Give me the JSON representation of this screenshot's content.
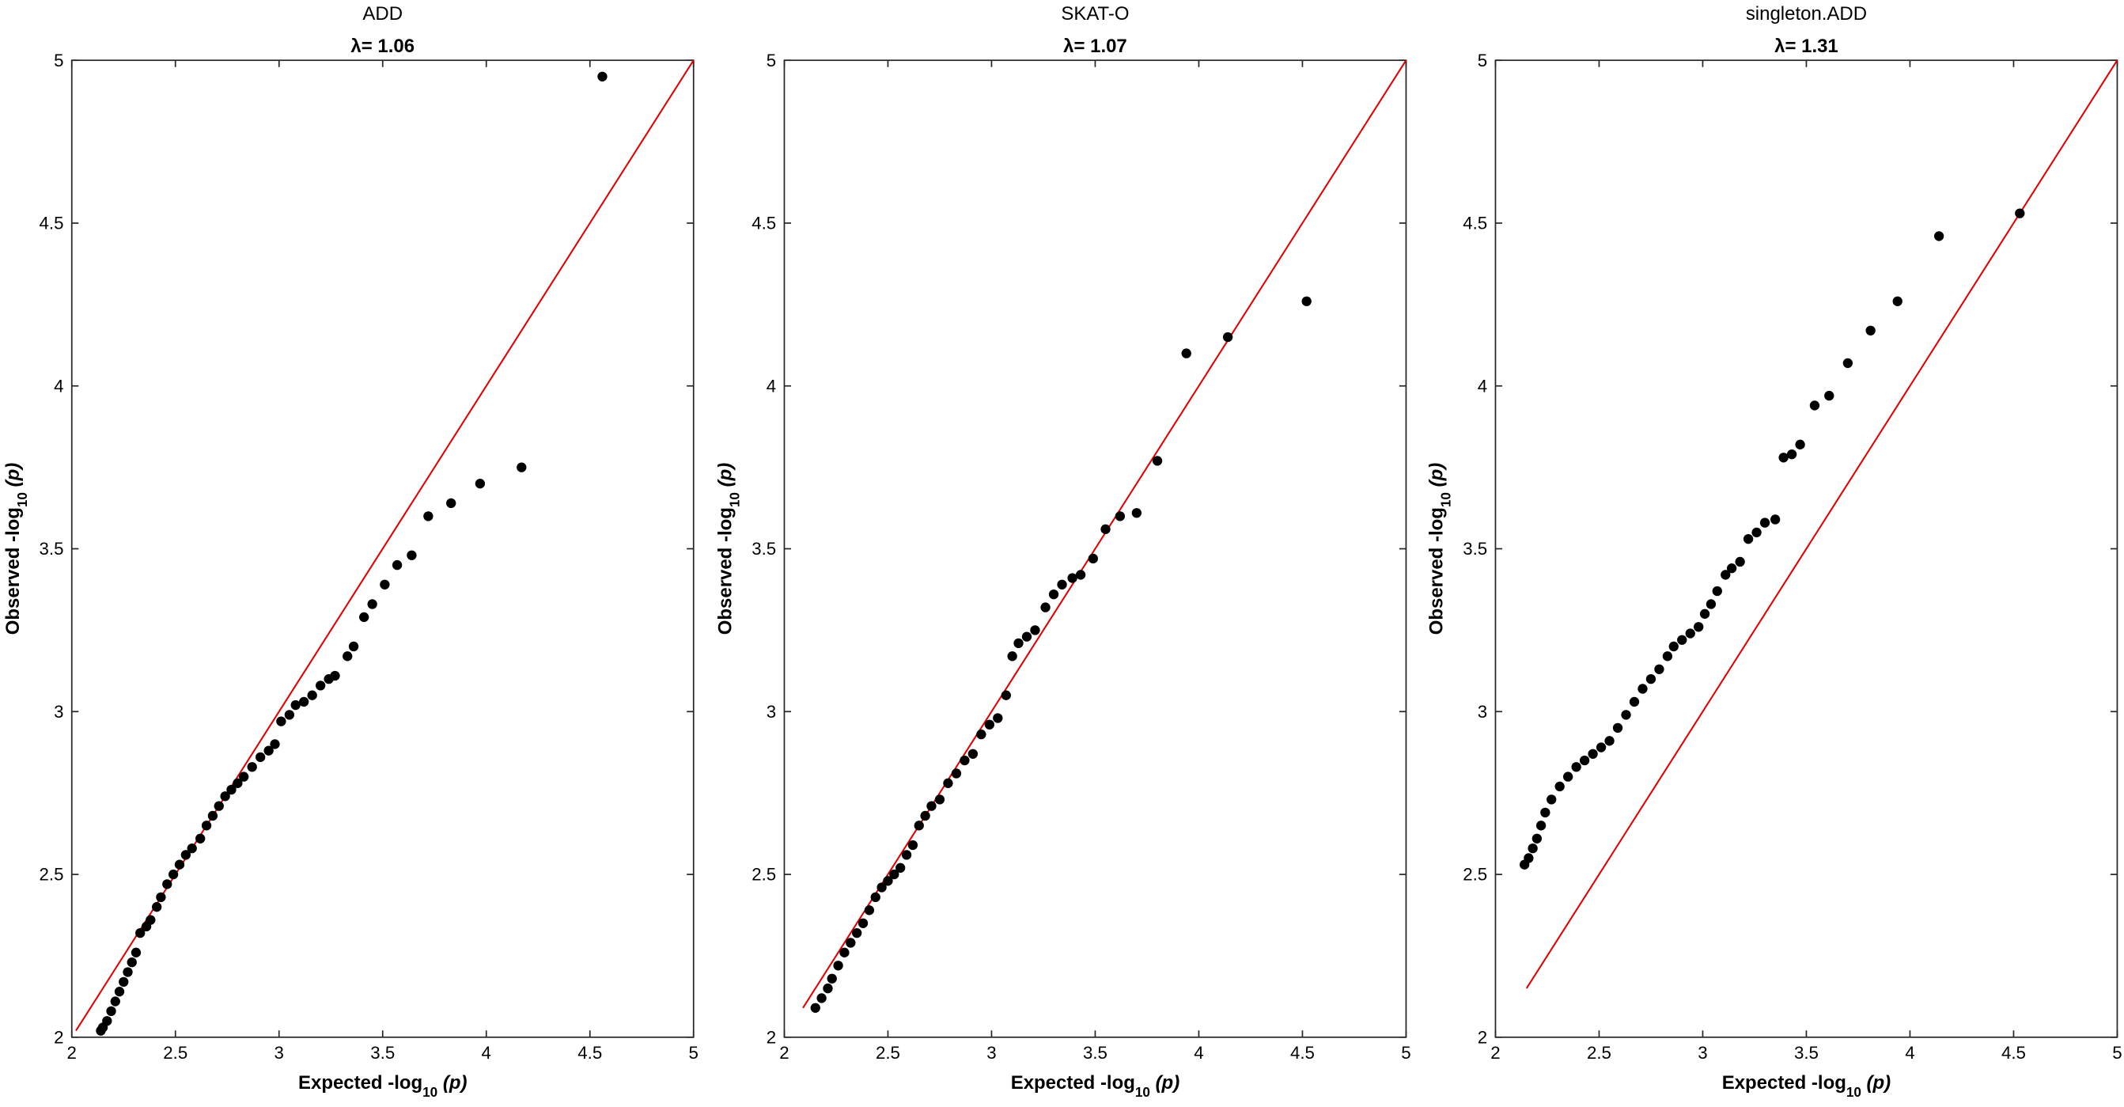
{
  "chart_data": [
    {
      "type": "scatter",
      "title": "ADD",
      "subtitle": "λ= 1.06",
      "xlabel": [
        "Expected -log",
        "10",
        "(p)"
      ],
      "ylabel": [
        "Observed -log",
        "10",
        "(p)"
      ],
      "color": "#000000",
      "xlim": [
        2,
        5
      ],
      "ylim": [
        2,
        5
      ],
      "xticks": [
        2,
        2.5,
        3,
        3.5,
        4,
        4.5,
        5
      ],
      "yticks": [
        2,
        2.5,
        3,
        3.5,
        4,
        4.5,
        5
      ],
      "reference_line": {
        "x": [
          2.02,
          5
        ],
        "y": [
          2.02,
          5
        ],
        "color": "#e00000"
      },
      "x": [
        4.56,
        4.17,
        3.97,
        3.83,
        3.72,
        3.64,
        3.57,
        3.51,
        3.45,
        3.41,
        3.36,
        3.33,
        3.27,
        3.24,
        3.2,
        3.16,
        3.12,
        3.08,
        3.05,
        3.01,
        2.98,
        2.95,
        2.91,
        2.87,
        2.83,
        2.8,
        2.77,
        2.74,
        2.71,
        2.68,
        2.65,
        2.62,
        2.58,
        2.55,
        2.52,
        2.49,
        2.46,
        2.43,
        2.41,
        2.38,
        2.36,
        2.33,
        2.31,
        2.29,
        2.27,
        2.25,
        2.23,
        2.21,
        2.19,
        2.17,
        2.15,
        2.14
      ],
      "y": [
        4.95,
        3.75,
        3.7,
        3.64,
        3.6,
        3.48,
        3.45,
        3.39,
        3.33,
        3.29,
        3.2,
        3.17,
        3.11,
        3.1,
        3.08,
        3.05,
        3.03,
        3.02,
        2.99,
        2.97,
        2.9,
        2.88,
        2.86,
        2.83,
        2.8,
        2.78,
        2.76,
        2.74,
        2.71,
        2.68,
        2.65,
        2.61,
        2.58,
        2.56,
        2.53,
        2.5,
        2.47,
        2.43,
        2.4,
        2.36,
        2.34,
        2.32,
        2.26,
        2.23,
        2.2,
        2.17,
        2.14,
        2.11,
        2.08,
        2.05,
        2.03,
        2.02
      ]
    },
    {
      "type": "scatter",
      "title": "SKAT-O",
      "subtitle": "λ= 1.07",
      "xlabel": [
        "Expected -log",
        "10",
        "(p)"
      ],
      "ylabel": [
        "Observed -log",
        "10",
        "(p)"
      ],
      "color": "#000000",
      "xlim": [
        2,
        5
      ],
      "ylim": [
        2,
        5
      ],
      "xticks": [
        2,
        2.5,
        3,
        3.5,
        4,
        4.5,
        5
      ],
      "yticks": [
        2,
        2.5,
        3,
        3.5,
        4,
        4.5,
        5
      ],
      "reference_line": {
        "x": [
          2.09,
          5
        ],
        "y": [
          2.09,
          5
        ],
        "color": "#e00000"
      },
      "x": [
        4.52,
        4.14,
        3.94,
        3.8,
        3.7,
        3.62,
        3.55,
        3.49,
        3.43,
        3.39,
        3.34,
        3.3,
        3.26,
        3.21,
        3.17,
        3.13,
        3.1,
        3.07,
        3.03,
        2.99,
        2.95,
        2.91,
        2.87,
        2.83,
        2.79,
        2.75,
        2.71,
        2.68,
        2.65,
        2.62,
        2.59,
        2.56,
        2.53,
        2.5,
        2.47,
        2.44,
        2.41,
        2.38,
        2.35,
        2.32,
        2.29,
        2.26,
        2.23,
        2.21,
        2.18,
        2.15
      ],
      "y": [
        4.26,
        4.15,
        4.1,
        3.77,
        3.61,
        3.6,
        3.56,
        3.47,
        3.42,
        3.41,
        3.39,
        3.36,
        3.32,
        3.25,
        3.23,
        3.21,
        3.17,
        3.05,
        2.98,
        2.96,
        2.93,
        2.87,
        2.85,
        2.81,
        2.78,
        2.73,
        2.71,
        2.68,
        2.65,
        2.59,
        2.56,
        2.52,
        2.5,
        2.48,
        2.46,
        2.43,
        2.39,
        2.35,
        2.32,
        2.29,
        2.26,
        2.22,
        2.18,
        2.15,
        2.12,
        2.09
      ]
    },
    {
      "type": "scatter",
      "title": "singleton.ADD",
      "subtitle": "λ= 1.31",
      "xlabel": [
        "Expected -log",
        "10",
        "(p)"
      ],
      "ylabel": [
        "Observed -log",
        "10",
        "(p)"
      ],
      "color": "#000000",
      "xlim": [
        2,
        5
      ],
      "ylim": [
        2,
        5
      ],
      "xticks": [
        2,
        2.5,
        3,
        3.5,
        4,
        4.5,
        5
      ],
      "yticks": [
        2,
        2.5,
        3,
        3.5,
        4,
        4.5,
        5
      ],
      "reference_line": {
        "x": [
          2.15,
          5
        ],
        "y": [
          2.15,
          5
        ],
        "color": "#e00000"
      },
      "x": [
        4.53,
        4.14,
        3.94,
        3.81,
        3.7,
        3.61,
        3.54,
        3.47,
        3.43,
        3.39,
        3.35,
        3.3,
        3.26,
        3.22,
        3.18,
        3.14,
        3.11,
        3.07,
        3.04,
        3.01,
        2.98,
        2.94,
        2.9,
        2.86,
        2.83,
        2.79,
        2.75,
        2.71,
        2.67,
        2.63,
        2.59,
        2.55,
        2.51,
        2.47,
        2.43,
        2.39,
        2.35,
        2.31,
        2.27,
        2.24,
        2.22,
        2.2,
        2.18,
        2.16,
        2.14
      ],
      "y": [
        4.53,
        4.46,
        4.26,
        4.17,
        4.07,
        3.97,
        3.94,
        3.82,
        3.79,
        3.78,
        3.59,
        3.58,
        3.55,
        3.53,
        3.46,
        3.44,
        3.42,
        3.37,
        3.33,
        3.3,
        3.26,
        3.24,
        3.22,
        3.2,
        3.17,
        3.13,
        3.1,
        3.07,
        3.03,
        2.99,
        2.95,
        2.91,
        2.89,
        2.87,
        2.85,
        2.83,
        2.8,
        2.77,
        2.73,
        2.69,
        2.65,
        2.61,
        2.58,
        2.55,
        2.53
      ]
    }
  ]
}
